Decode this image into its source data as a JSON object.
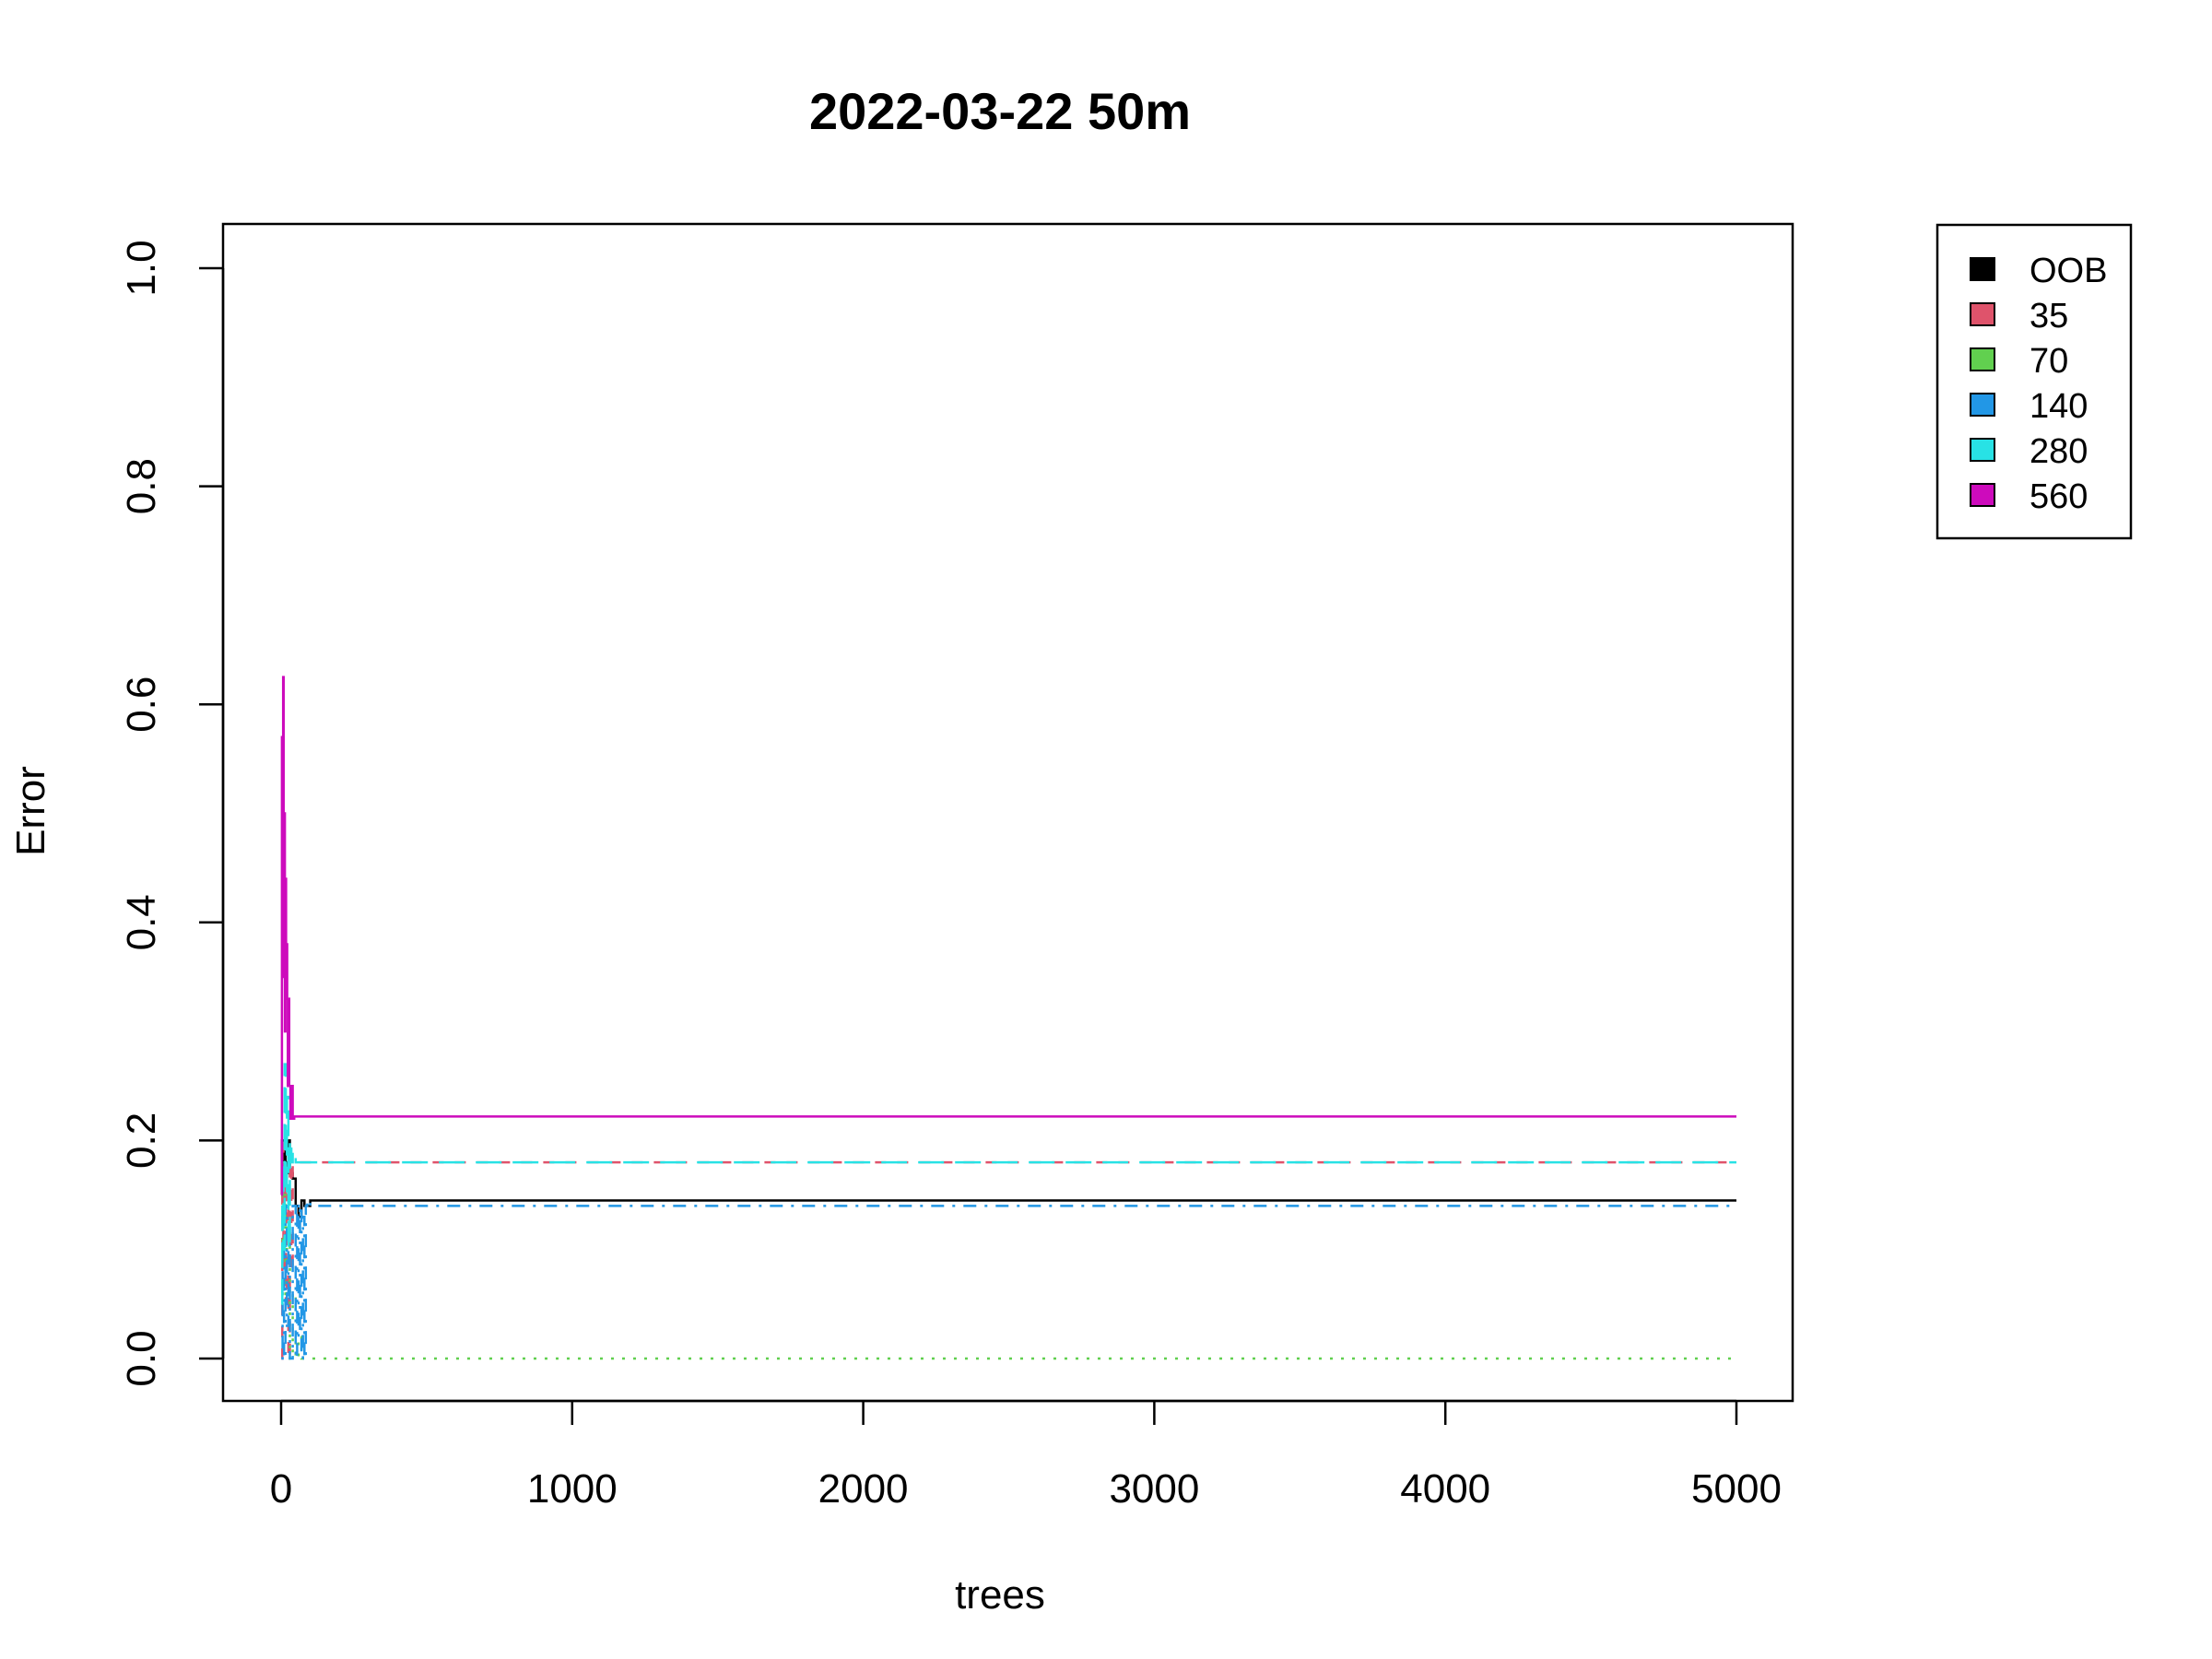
{
  "chart_data": {
    "type": "line",
    "title": "2022-03-22 50m",
    "xlabel": "trees",
    "ylabel": "Error",
    "xlim": [
      0,
      5000
    ],
    "ylim": [
      0.0,
      1.0
    ],
    "xticks": [
      0,
      1000,
      2000,
      3000,
      4000,
      5000
    ],
    "yticks": [
      0.0,
      0.2,
      0.4,
      0.6,
      0.8,
      1.0
    ],
    "ytick_labels": [
      "0.0",
      "0.2",
      "0.4",
      "0.6",
      "0.8",
      "1.0"
    ],
    "grid": false,
    "legend_position": "top-right, outside plot",
    "series": [
      {
        "name": "OOB",
        "color": "#000000",
        "dash": "solid",
        "x": [
          1,
          3,
          6,
          10,
          15,
          20,
          25,
          30,
          40,
          50,
          60,
          70,
          80,
          100,
          5000
        ],
        "y": [
          0.15,
          0.2,
          0.17,
          0.19,
          0.18,
          0.17,
          0.2,
          0.17,
          0.165,
          0.14,
          0.13,
          0.145,
          0.14,
          0.145,
          0.145
        ]
      },
      {
        "name": "35",
        "color": "#DF536B",
        "dash": "dashed",
        "x": [
          1,
          4,
          8,
          12,
          16,
          20,
          25,
          30,
          35,
          40,
          50,
          5000
        ],
        "y": [
          0.0,
          0.2,
          0.08,
          0.18,
          0.05,
          0.15,
          0.0,
          0.18,
          0.08,
          0.18,
          0.18,
          0.18
        ]
      },
      {
        "name": "70",
        "color": "#61D04F",
        "dash": "dotted",
        "x": [
          1,
          5,
          10,
          15,
          20,
          30,
          40,
          50,
          60,
          70,
          80,
          5000
        ],
        "y": [
          0.18,
          0.1,
          0.15,
          0.05,
          0.12,
          0.0,
          0.06,
          0.0,
          0.02,
          0.0,
          0.0,
          0.0
        ]
      },
      {
        "name": "140",
        "color": "#2297E6",
        "dash": "dotdash",
        "x": [
          1,
          5,
          10,
          15,
          20,
          25,
          30,
          40,
          50,
          55,
          60,
          65,
          70,
          75,
          80,
          85,
          90,
          100,
          5000
        ],
        "y": [
          0.0,
          0.1,
          0.0,
          0.14,
          0.03,
          0.12,
          0.0,
          0.14,
          0.0,
          0.14,
          0.02,
          0.14,
          0.0,
          0.13,
          0.0,
          0.14,
          0.145,
          0.14,
          0.14
        ]
      },
      {
        "name": "280",
        "color": "#28E2E5",
        "dash": "longdash",
        "x": [
          1,
          4,
          8,
          12,
          16,
          20,
          25,
          30,
          35,
          40,
          50,
          5000
        ],
        "y": [
          0.05,
          0.18,
          0.1,
          0.27,
          0.15,
          0.24,
          0.1,
          0.2,
          0.18,
          0.19,
          0.18,
          0.18
        ]
      },
      {
        "name": "560",
        "color": "#CD0BBC",
        "dash": "solid",
        "x": [
          1,
          3,
          5,
          7,
          9,
          11,
          13,
          15,
          17,
          19,
          21,
          23,
          25,
          28,
          32,
          36,
          40,
          45,
          50,
          5000
        ],
        "y": [
          0.15,
          0.57,
          0.35,
          0.625,
          0.4,
          0.5,
          0.3,
          0.44,
          0.33,
          0.38,
          0.33,
          0.25,
          0.33,
          0.25,
          0.22,
          0.25,
          0.22,
          0.222,
          0.222,
          0.222
        ]
      }
    ]
  }
}
